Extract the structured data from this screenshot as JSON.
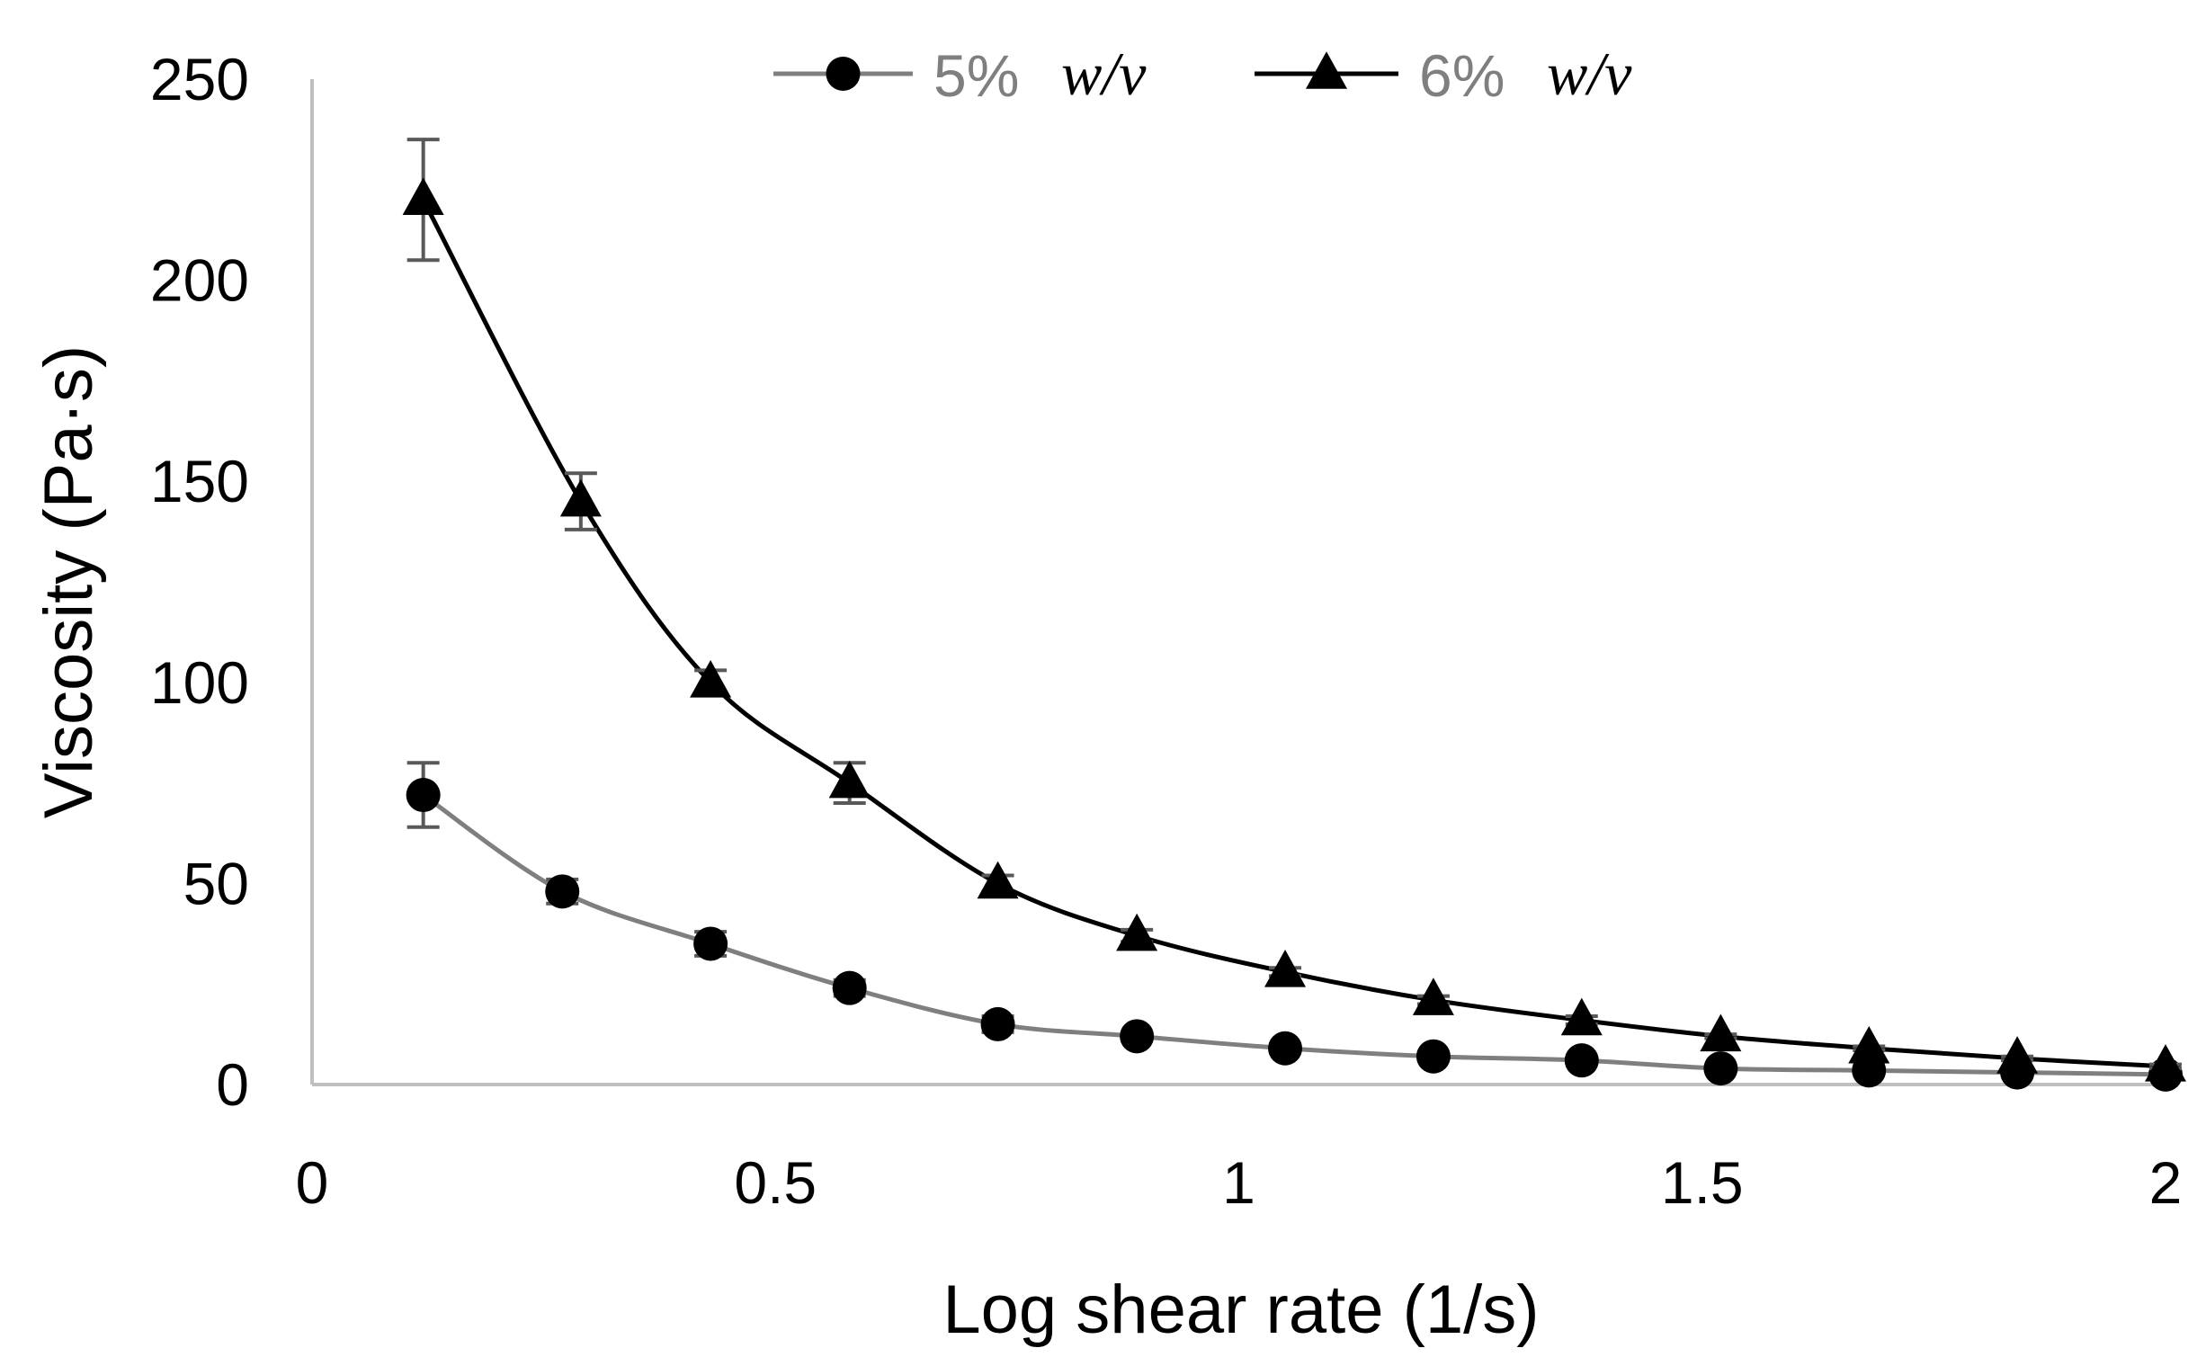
{
  "chart_data": {
    "type": "line",
    "title": "",
    "xlabel": "Log shear rate (1/s)",
    "ylabel": "Viscosity (Pa·s)",
    "xlim": [
      0,
      2
    ],
    "ylim": [
      0,
      250
    ],
    "x_ticks": [
      "0",
      "0.5",
      "1",
      "1.5",
      "2"
    ],
    "y_ticks": [
      "0",
      "50",
      "100",
      "150",
      "200",
      "250"
    ],
    "grid": false,
    "legend_position": "top-center",
    "series": [
      {
        "name": "5% w/v",
        "legend_percent": "5%",
        "legend_unit": "w/v",
        "marker": "circle",
        "line_color": "#7f7f7f",
        "marker_color": "#000000",
        "x": [
          0.12,
          0.27,
          0.43,
          0.58,
          0.74,
          0.89,
          1.05,
          1.21,
          1.37,
          1.52,
          1.68,
          1.84,
          2.0
        ],
        "values": [
          72,
          48,
          35,
          24,
          15,
          12,
          9,
          7,
          6,
          4,
          3.5,
          3,
          2.5
        ],
        "errors": [
          8,
          3,
          3,
          2,
          2,
          1,
          1,
          1,
          0.5,
          0.5,
          0.5,
          0.5,
          0.5
        ]
      },
      {
        "name": "6% w/v",
        "legend_percent": "6%",
        "legend_unit": "w/v",
        "marker": "triangle",
        "line_color": "#000000",
        "marker_color": "#000000",
        "x": [
          0.12,
          0.29,
          0.43,
          0.58,
          0.74,
          0.89,
          1.05,
          1.21,
          1.37,
          1.52,
          1.68,
          1.84,
          2.0
        ],
        "values": [
          220,
          145,
          100,
          75,
          50,
          37,
          28,
          21,
          16,
          12,
          9,
          6.5,
          4.5
        ],
        "errors": [
          15,
          7,
          3,
          5,
          2,
          1.5,
          1,
          1,
          1,
          0.5,
          0.5,
          0.5,
          0.5
        ]
      }
    ]
  }
}
